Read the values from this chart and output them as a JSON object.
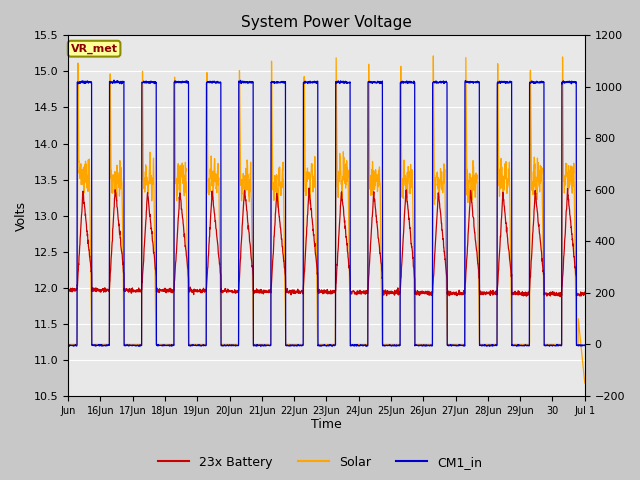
{
  "title": "System Power Voltage",
  "xlabel": "Time",
  "ylabel": "Volts",
  "ylim_left": [
    10.5,
    15.5
  ],
  "ylim_right": [
    -200,
    1200
  ],
  "yticks_left": [
    10.5,
    11.0,
    11.5,
    12.0,
    12.5,
    13.0,
    13.5,
    14.0,
    14.5,
    15.0,
    15.5
  ],
  "yticks_right": [
    -200,
    0,
    200,
    400,
    600,
    800,
    1000,
    1200
  ],
  "colors": {
    "battery": "#cc0000",
    "solar": "#ffa500",
    "cm1": "#0000cc"
  },
  "legend_labels": [
    "23x Battery",
    "Solar",
    "CM1_in"
  ],
  "annotation_text": "VR_met",
  "annotation_box_color": "#ffff99",
  "annotation_box_edge": "#8B8B00",
  "tick_labels": [
    "Jun",
    "16Jun",
    "17Jun",
    "18Jun",
    "19Jun",
    "20Jun",
    "21Jun",
    "22Jun",
    "23Jun",
    "24Jun",
    "25Jun",
    "26Jun",
    "27Jun",
    "28Jun",
    "29Jun",
    "30",
    "Jul 1"
  ],
  "fig_bg": "#c8c8c8",
  "plot_bg": "#e8e8e8",
  "linewidth": 0.9
}
